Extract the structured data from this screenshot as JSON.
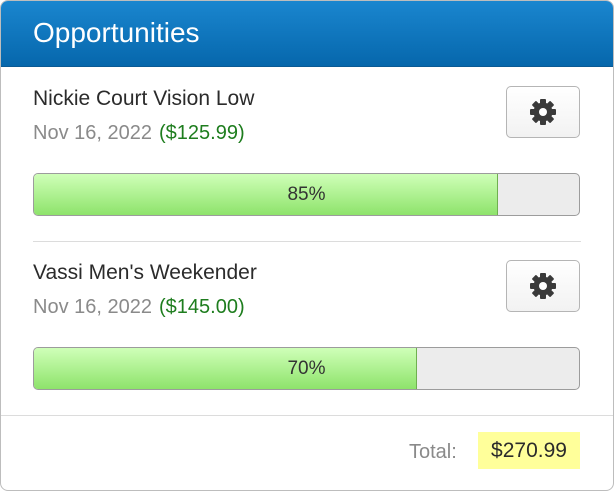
{
  "header": {
    "title": "Opportunities"
  },
  "items": [
    {
      "name": "Nickie Court Vision Low",
      "date": "Nov 16, 2022",
      "amount": "($125.99)",
      "progress": {
        "value": 85,
        "label": "85%"
      }
    },
    {
      "name": "Vassi Men's Weekender",
      "date": "Nov 16, 2022",
      "amount": "($145.00)",
      "progress": {
        "value": 70,
        "label": "70%"
      }
    }
  ],
  "footer": {
    "label": "Total:",
    "total": "$270.99"
  }
}
